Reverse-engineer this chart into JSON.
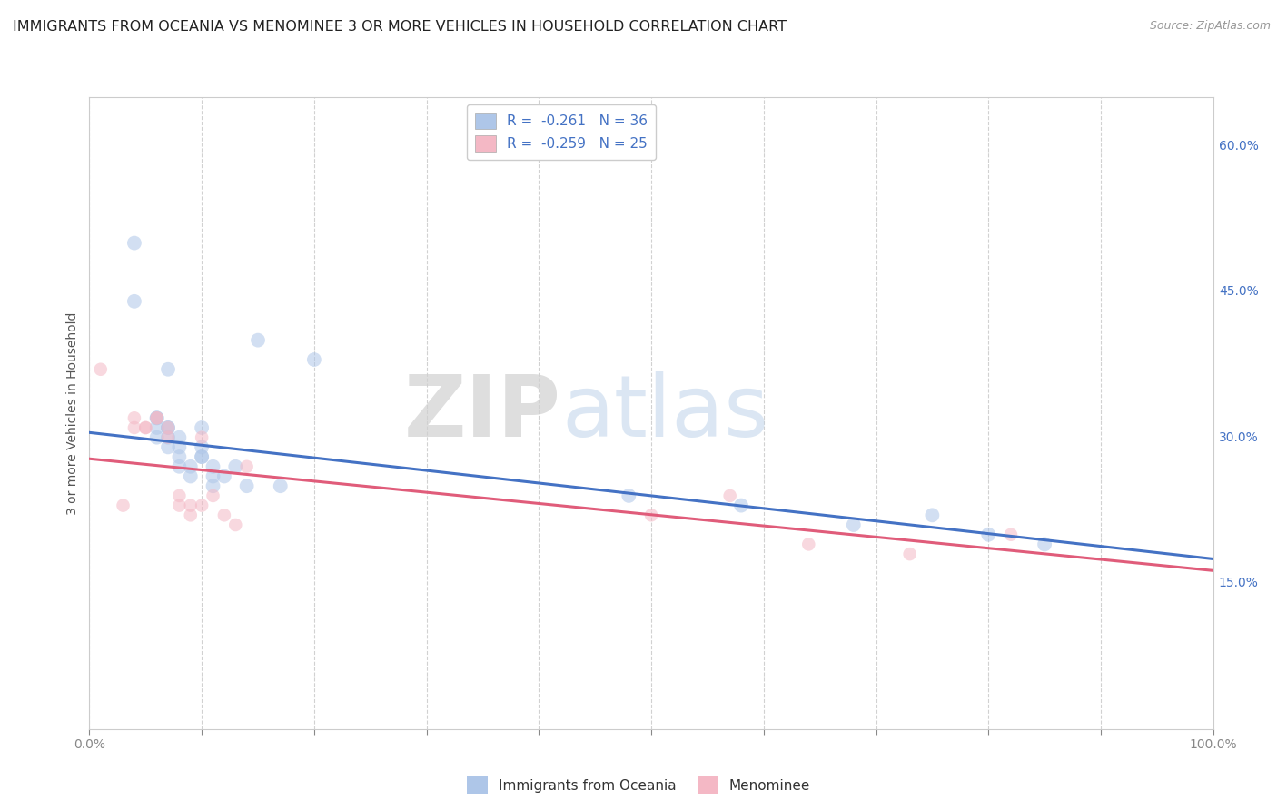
{
  "title": "IMMIGRANTS FROM OCEANIA VS MENOMINEE 3 OR MORE VEHICLES IN HOUSEHOLD CORRELATION CHART",
  "source": "Source: ZipAtlas.com",
  "ylabel": "3 or more Vehicles in Household",
  "right_yticks": [
    "60.0%",
    "45.0%",
    "30.0%",
    "15.0%"
  ],
  "right_ytick_vals": [
    0.6,
    0.45,
    0.3,
    0.15
  ],
  "legend_blue_label": "R =  -0.261   N = 36",
  "legend_pink_label": "R =  -0.259   N = 25",
  "legend_blue_color": "#aec6e8",
  "legend_pink_color": "#f4b8c5",
  "blue_color": "#aec6e8",
  "pink_color": "#f4b8c5",
  "trend_blue": "#4472c4",
  "trend_pink": "#e05c7a",
  "watermark_zip": "ZIP",
  "watermark_atlas": "atlas",
  "blue_scatter_x": [
    0.04,
    0.04,
    0.06,
    0.06,
    0.06,
    0.06,
    0.07,
    0.07,
    0.07,
    0.07,
    0.07,
    0.08,
    0.08,
    0.08,
    0.08,
    0.09,
    0.09,
    0.1,
    0.1,
    0.1,
    0.1,
    0.11,
    0.11,
    0.11,
    0.12,
    0.13,
    0.14,
    0.15,
    0.17,
    0.2,
    0.48,
    0.58,
    0.68,
    0.75,
    0.8,
    0.85
  ],
  "blue_scatter_y": [
    0.5,
    0.44,
    0.32,
    0.32,
    0.31,
    0.3,
    0.31,
    0.31,
    0.3,
    0.29,
    0.37,
    0.27,
    0.28,
    0.29,
    0.3,
    0.27,
    0.26,
    0.28,
    0.28,
    0.29,
    0.31,
    0.27,
    0.26,
    0.25,
    0.26,
    0.27,
    0.25,
    0.4,
    0.25,
    0.38,
    0.24,
    0.23,
    0.21,
    0.22,
    0.2,
    0.19
  ],
  "pink_scatter_x": [
    0.01,
    0.03,
    0.04,
    0.04,
    0.05,
    0.05,
    0.06,
    0.06,
    0.07,
    0.07,
    0.08,
    0.08,
    0.09,
    0.09,
    0.1,
    0.1,
    0.11,
    0.12,
    0.13,
    0.14,
    0.5,
    0.57,
    0.64,
    0.73,
    0.82
  ],
  "pink_scatter_y": [
    0.37,
    0.23,
    0.31,
    0.32,
    0.31,
    0.31,
    0.32,
    0.32,
    0.31,
    0.3,
    0.23,
    0.24,
    0.23,
    0.22,
    0.23,
    0.3,
    0.24,
    0.22,
    0.21,
    0.27,
    0.22,
    0.24,
    0.19,
    0.18,
    0.2
  ],
  "blue_trend_x": [
    0.0,
    1.0
  ],
  "blue_trend_y": [
    0.305,
    0.175
  ],
  "pink_trend_x": [
    0.0,
    1.0
  ],
  "pink_trend_y": [
    0.278,
    0.163
  ],
  "xlim": [
    0.0,
    1.0
  ],
  "ylim": [
    0.0,
    0.65
  ],
  "scatter_size_blue": 130,
  "scatter_size_pink": 110,
  "scatter_alpha": 0.55,
  "background_color": "#ffffff",
  "grid_color": "#cccccc",
  "title_fontsize": 11.5,
  "axis_label_fontsize": 10,
  "tick_fontsize": 10,
  "bottom_legend_labels": [
    "Immigrants from Oceania",
    "Menominee"
  ]
}
